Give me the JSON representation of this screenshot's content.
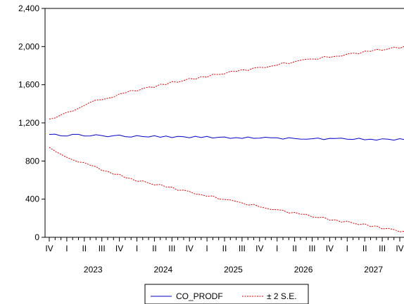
{
  "chart_data": {
    "type": "line",
    "y_ticks": [
      "0",
      "400",
      "800",
      "1,200",
      "1,600",
      "2,000",
      "2,400"
    ],
    "y_tick_values": [
      0,
      400,
      800,
      1200,
      1600,
      2000,
      2400
    ],
    "ylim": [
      0,
      2400
    ],
    "quarter_labels": [
      "IV",
      "I",
      "II",
      "III",
      "IV",
      "I",
      "II",
      "III",
      "IV",
      "I",
      "II",
      "III",
      "IV",
      "I",
      "II",
      "III",
      "IV",
      "I",
      "II",
      "III",
      "IV"
    ],
    "year_labels": [
      "2023",
      "2024",
      "2025",
      "2026",
      "2027"
    ],
    "x_start": "2022 Q4",
    "x_end": "2027 Q4",
    "frequency": "monthly",
    "grid": false,
    "legend_position": "bottom-center",
    "series": [
      {
        "name": "CO_PRODF",
        "color": "#0000cc",
        "style": "solid",
        "x": [
          "2022-10",
          "2022-12",
          "2023-02",
          "2023-04",
          "2023-06",
          "2023-08",
          "2023-10",
          "2023-12",
          "2024-06",
          "2024-12",
          "2025-06",
          "2025-12",
          "2026-06",
          "2026-12",
          "2027-06",
          "2027-12"
        ],
        "values": [
          1085,
          1060,
          1080,
          1065,
          1070,
          1062,
          1063,
          1060,
          1055,
          1050,
          1045,
          1040,
          1035,
          1032,
          1028,
          1025
        ]
      },
      {
        "name": "± 2 S.E.",
        "color": "#dd0000",
        "style": "dashed",
        "bands": [
          {
            "label": "upper",
            "x": [
              "2022-10",
              "2022-12",
              "2023-03",
              "2023-06",
              "2023-09",
              "2023-12",
              "2024-06",
              "2024-12",
              "2025-06",
              "2025-12",
              "2026-06",
              "2026-12",
              "2027-06",
              "2027-12"
            ],
            "values": [
              1240,
              1280,
              1360,
              1430,
              1480,
              1530,
              1610,
              1680,
              1740,
              1800,
              1860,
              1910,
              1960,
              2010
            ]
          },
          {
            "label": "lower",
            "x": [
              "2022-10",
              "2022-12",
              "2023-03",
              "2023-06",
              "2023-09",
              "2023-12",
              "2024-06",
              "2024-12",
              "2025-06",
              "2025-12",
              "2026-06",
              "2026-12",
              "2027-06",
              "2027-12"
            ],
            "values": [
              950,
              860,
              800,
              730,
              670,
              610,
              530,
              450,
              370,
              300,
              230,
              170,
              110,
              45
            ]
          }
        ]
      }
    ]
  },
  "legend": {
    "items": [
      {
        "label": "CO_PRODF",
        "color": "#0000cc",
        "style": "solid"
      },
      {
        "label": "± 2 S.E.",
        "color": "#dd0000",
        "style": "dashed"
      }
    ]
  }
}
